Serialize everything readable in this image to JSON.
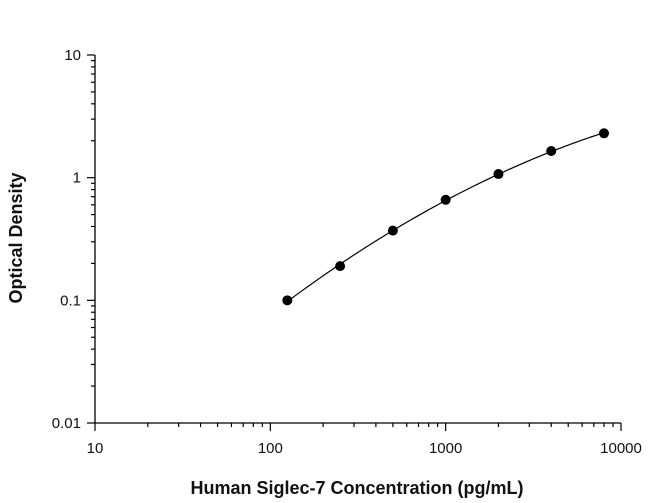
{
  "chart_data": {
    "type": "scatter",
    "xlabel": "Human Siglec-7 Concentration (pg/mL)",
    "ylabel": "Optical Density",
    "x_scale": "log",
    "y_scale": "log",
    "xlim": [
      10,
      10000
    ],
    "ylim": [
      0.01,
      10
    ],
    "x_ticks": [
      "10",
      "100",
      "1000",
      "10000"
    ],
    "y_ticks": [
      "0.01",
      "0.1",
      "1",
      "10"
    ],
    "grid": false,
    "series": [
      {
        "x": [
          125,
          250,
          500,
          1000,
          2000,
          4000,
          8000
        ],
        "y": [
          0.1,
          0.19,
          0.37,
          0.66,
          1.07,
          1.65,
          2.3
        ],
        "fit_curve": true
      }
    ]
  }
}
